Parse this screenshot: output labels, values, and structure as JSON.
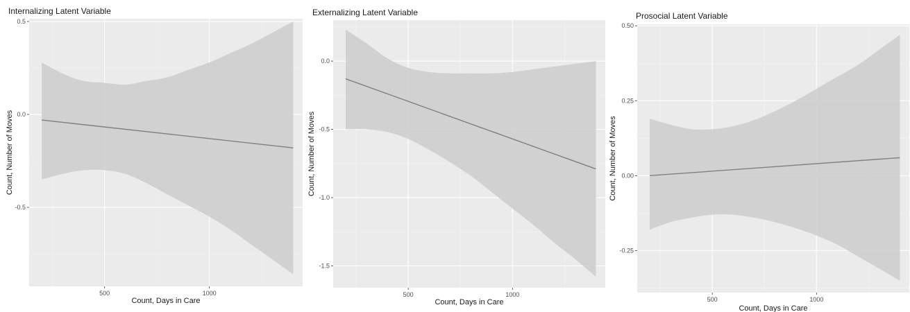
{
  "colors": {
    "panel_bg": "#ebebeb",
    "grid_major": "#ffffff",
    "grid_minor": "#f3f3f3",
    "ribbon": "#cccccc",
    "line": "#7f7f7f"
  },
  "chart_data": [
    {
      "type": "line",
      "title": "Internalizing Latent Variable",
      "xlabel": "Count, Days in Care",
      "ylabel": "Count, Number of Moves",
      "xlim": [
        140,
        1445
      ],
      "ylim": [
        -0.925,
        0.515
      ],
      "x_ticks": [
        500,
        1000
      ],
      "x_tick_labels": [
        "500",
        "1000"
      ],
      "y_ticks": [
        -0.5,
        0.0,
        0.5
      ],
      "y_tick_labels": [
        "-0.5",
        "0.0",
        "0.5"
      ],
      "grid": true,
      "legend": "none",
      "fit": {
        "x": [
          200,
          1400
        ],
        "y": [
          -0.03,
          -0.18
        ]
      },
      "ribbon": {
        "x": [
          200,
          300,
          400,
          500,
          600,
          700,
          800,
          900,
          1000,
          1100,
          1200,
          1300,
          1400
        ],
        "upper": [
          0.28,
          0.22,
          0.18,
          0.17,
          0.16,
          0.18,
          0.2,
          0.24,
          0.28,
          0.33,
          0.38,
          0.44,
          0.5
        ],
        "lower": [
          -0.35,
          -0.32,
          -0.3,
          -0.3,
          -0.32,
          -0.37,
          -0.43,
          -0.49,
          -0.55,
          -0.62,
          -0.7,
          -0.78,
          -0.86
        ]
      }
    },
    {
      "type": "line",
      "title": "Externalizing Latent Variable",
      "xlabel": "Count, Days in Care",
      "ylabel": "Count, Number of Moves",
      "xlim": [
        140,
        1445
      ],
      "ylim": [
        -1.66,
        0.3
      ],
      "x_ticks": [
        500,
        1000
      ],
      "x_tick_labels": [
        "500",
        "1000"
      ],
      "y_ticks": [
        -1.5,
        -1.0,
        -0.5,
        0.0
      ],
      "y_tick_labels": [
        "-1.5",
        "-1.0",
        "-0.5",
        "0.0"
      ],
      "grid": true,
      "legend": "none",
      "fit": {
        "x": [
          200,
          1400
        ],
        "y": [
          -0.13,
          -0.79
        ]
      },
      "ribbon": {
        "x": [
          200,
          300,
          400,
          500,
          600,
          700,
          800,
          900,
          1000,
          1100,
          1200,
          1300,
          1400
        ],
        "upper": [
          0.23,
          0.13,
          0.02,
          -0.05,
          -0.08,
          -0.09,
          -0.09,
          -0.09,
          -0.08,
          -0.06,
          -0.04,
          -0.02,
          0.0
        ],
        "lower": [
          -0.5,
          -0.5,
          -0.52,
          -0.57,
          -0.65,
          -0.74,
          -0.84,
          -0.96,
          -1.08,
          -1.2,
          -1.33,
          -1.45,
          -1.58
        ]
      }
    },
    {
      "type": "line",
      "title": "Prosocial Latent Variable",
      "xlabel": "Count, Days in Care",
      "ylabel": "Count, Number of Moves",
      "xlim": [
        140,
        1445
      ],
      "ylim": [
        -0.39,
        0.505
      ],
      "x_ticks": [
        500,
        1000
      ],
      "x_tick_labels": [
        "500",
        "1000"
      ],
      "y_ticks": [
        -0.25,
        0.0,
        0.25,
        0.5
      ],
      "y_tick_labels": [
        "-0.25",
        "0.00",
        "0.25",
        "0.50"
      ],
      "grid": true,
      "legend": "none",
      "fit": {
        "x": [
          200,
          1400
        ],
        "y": [
          0.0,
          0.06
        ]
      },
      "ribbon": {
        "x": [
          200,
          300,
          400,
          500,
          600,
          700,
          800,
          900,
          1000,
          1100,
          1200,
          1300,
          1400
        ],
        "upper": [
          0.19,
          0.17,
          0.155,
          0.155,
          0.165,
          0.185,
          0.215,
          0.25,
          0.29,
          0.33,
          0.37,
          0.42,
          0.47
        ],
        "lower": [
          -0.18,
          -0.155,
          -0.14,
          -0.13,
          -0.13,
          -0.14,
          -0.155,
          -0.175,
          -0.2,
          -0.23,
          -0.27,
          -0.31,
          -0.35
        ]
      }
    }
  ]
}
